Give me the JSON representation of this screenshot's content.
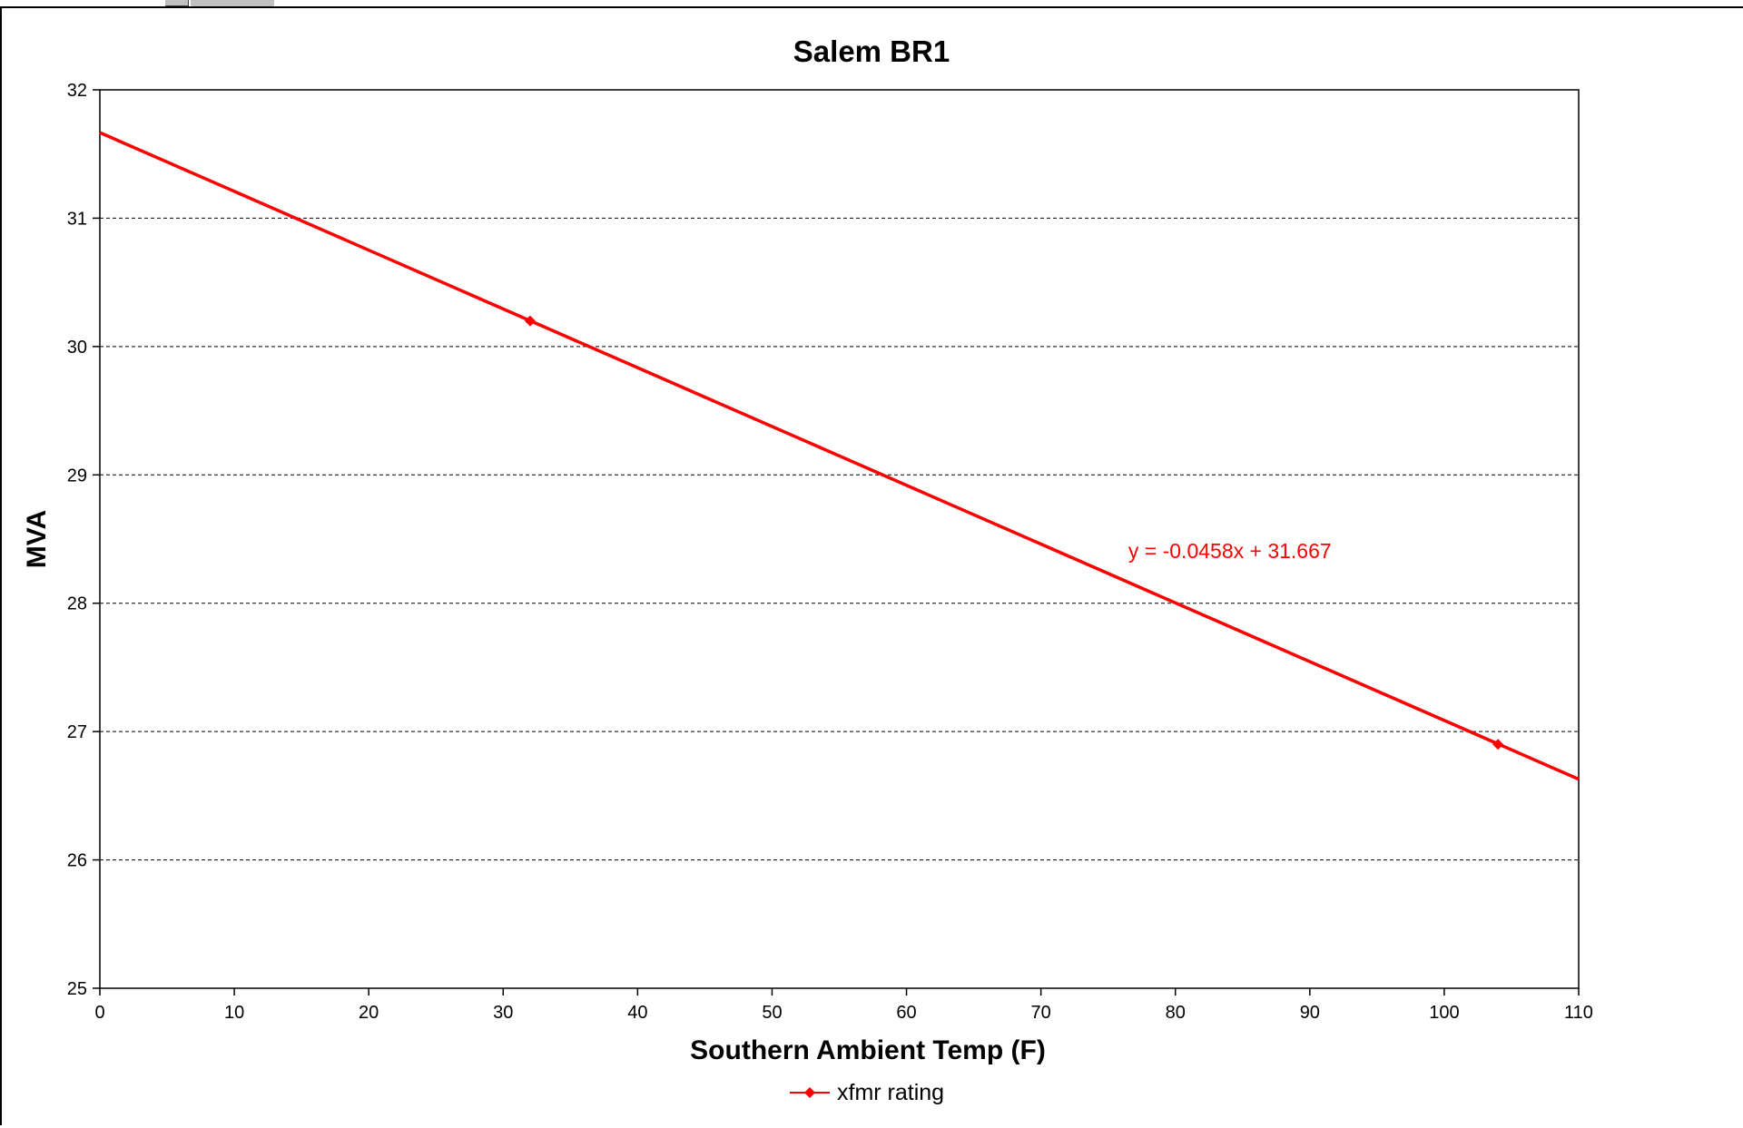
{
  "chart_data": {
    "type": "line",
    "title": "Salem BR1",
    "xlabel": "Southern Ambient Temp (F)",
    "ylabel": "MVA",
    "xlim": [
      0,
      110
    ],
    "ylim": [
      25,
      32
    ],
    "x_ticks": [
      0,
      10,
      20,
      30,
      40,
      50,
      60,
      70,
      80,
      90,
      100,
      110
    ],
    "y_ticks": [
      25,
      26,
      27,
      28,
      29,
      30,
      31,
      32
    ],
    "grid": "horizontal dashed",
    "legend": "bottom-center",
    "series": [
      {
        "name": "xfmr rating",
        "color": "#ff0000",
        "marker": "diamond",
        "points": [
          {
            "x": 32,
            "y": 30.2
          },
          {
            "x": 104,
            "y": 26.9
          }
        ]
      }
    ],
    "trendline": {
      "color": "#ff0000",
      "slope": -0.0458,
      "intercept": 31.667,
      "x_range": [
        0,
        110
      ],
      "label": "y = -0.0458x + 31.667",
      "label_anchor": {
        "x": 76.5,
        "y": 28.35
      }
    }
  }
}
